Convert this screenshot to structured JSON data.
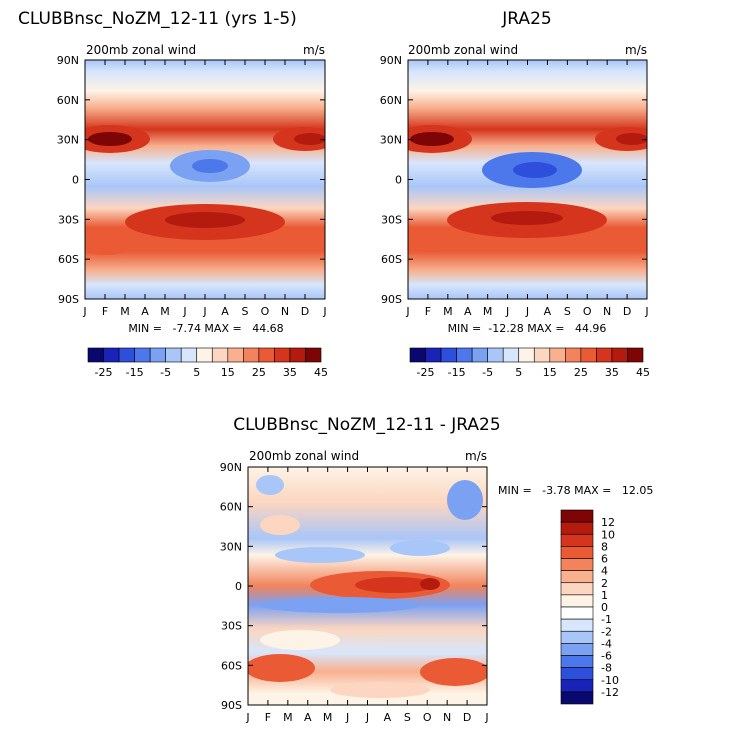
{
  "chart_data": [
    {
      "type": "heatmap",
      "title": "CLUBBnsc_NoZM_12-11 (yrs 1-5)",
      "subtitle": "200mb zonal wind",
      "units": "m/s",
      "x_ticks": [
        "J",
        "F",
        "M",
        "A",
        "M",
        "J",
        "J",
        "A",
        "S",
        "O",
        "N",
        "D",
        "J"
      ],
      "y_ticks": [
        "90N",
        "60N",
        "30N",
        "0",
        "30S",
        "60S",
        "90S"
      ],
      "stats": "MIN =   -7.74 MAX =   44.68",
      "colorbar_levels": [
        "-25",
        "-15",
        "-5",
        "5",
        "15",
        "25",
        "35",
        "45"
      ],
      "colorbar_orientation": "horizontal",
      "colorbar_colors": [
        "#08086e",
        "#1a23b8",
        "#2d4fdc",
        "#4c78ec",
        "#7ba1f2",
        "#a9c6f8",
        "#d7e6fc",
        "#fdf3e6",
        "#fcd6c0",
        "#f8b08e",
        "#f2835c",
        "#ea5a34",
        "#d4351c",
        "#b41b0e",
        "#7e0505"
      ],
      "description": "Monthly zonal-mean 200mb zonal wind: NH jet ~30N peaking in DJF, SH jet ~30-45S peaking in JJA, tropical easterlies near the equator in JJA"
    },
    {
      "type": "heatmap",
      "title": "JRA25",
      "subtitle": "200mb zonal wind",
      "units": "m/s",
      "x_ticks": [
        "J",
        "F",
        "M",
        "A",
        "M",
        "J",
        "J",
        "A",
        "S",
        "O",
        "N",
        "D",
        "J"
      ],
      "y_ticks": [
        "90N",
        "60N",
        "30N",
        "0",
        "30S",
        "60S",
        "90S"
      ],
      "stats": "MIN =  -12.28 MAX =   44.96",
      "colorbar_levels": [
        "-25",
        "-15",
        "-5",
        "5",
        "15",
        "25",
        "35",
        "45"
      ],
      "colorbar_orientation": "horizontal",
      "colorbar_colors": [
        "#08086e",
        "#1a23b8",
        "#2d4fdc",
        "#4c78ec",
        "#7ba1f2",
        "#a9c6f8",
        "#d7e6fc",
        "#fdf3e6",
        "#fcd6c0",
        "#f8b08e",
        "#f2835c",
        "#ea5a34",
        "#d4351c",
        "#b41b0e",
        "#7e0505"
      ]
    },
    {
      "type": "heatmap",
      "title": "CLUBBnsc_NoZM_12-11 - JRA25",
      "subtitle": "200mb zonal wind",
      "units": "m/s",
      "x_ticks": [
        "J",
        "F",
        "M",
        "A",
        "M",
        "J",
        "J",
        "A",
        "S",
        "O",
        "N",
        "D",
        "J"
      ],
      "y_ticks": [
        "90N",
        "60N",
        "30N",
        "0",
        "30S",
        "60S",
        "90S"
      ],
      "stats": "MIN =   -3.78 MAX =   12.05",
      "colorbar_levels": [
        "12",
        "10",
        "8",
        "6",
        "4",
        "2",
        "1",
        "0",
        "-1",
        "-2",
        "-4",
        "-6",
        "-8",
        "-10",
        "-12"
      ],
      "colorbar_orientation": "vertical",
      "colorbar_colors": [
        "#7e0505",
        "#b41b0e",
        "#d4351c",
        "#ea5a34",
        "#f2835c",
        "#f8b08e",
        "#fcd6c0",
        "#fdf3e6",
        "#ffffff",
        "#d7e6fc",
        "#a9c6f8",
        "#7ba1f2",
        "#4c78ec",
        "#2d4fdc",
        "#1a23b8",
        "#08086e"
      ]
    }
  ]
}
